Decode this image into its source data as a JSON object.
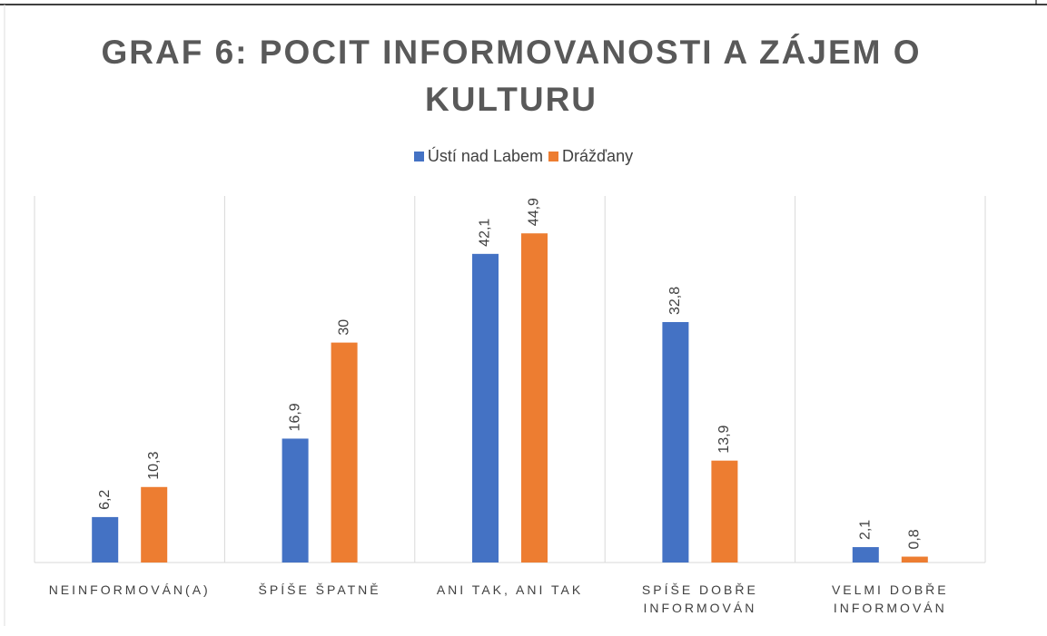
{
  "chart_data": {
    "type": "bar",
    "title": "GRAF 6: POCIT INFORMOVANOSTI A ZÁJEM O KULTURU",
    "categories": [
      "NEINFORMOVÁN(A)",
      "ŠPÍŠE ŠPATNĚ",
      "ANI TAK, ANI TAK",
      "SPÍŠE DOBŘE INFORMOVÁN",
      "VELMI DOBŘE INFORMOVÁN"
    ],
    "series": [
      {
        "name": "Ústí nad Labem",
        "color": "#4472c4",
        "values": [
          6.2,
          16.9,
          42.1,
          32.8,
          2.1
        ],
        "value_labels": [
          "6,2",
          "16,9",
          "42,1",
          "32,8",
          "2,1"
        ]
      },
      {
        "name": "Drážďany",
        "color": "#ed7d31",
        "values": [
          10.3,
          30,
          44.9,
          13.9,
          0.8
        ],
        "value_labels": [
          "10,3",
          "30",
          "44,9",
          "13,9",
          "0,8"
        ]
      }
    ],
    "ylim": [
      0,
      50
    ],
    "legend": "top"
  }
}
